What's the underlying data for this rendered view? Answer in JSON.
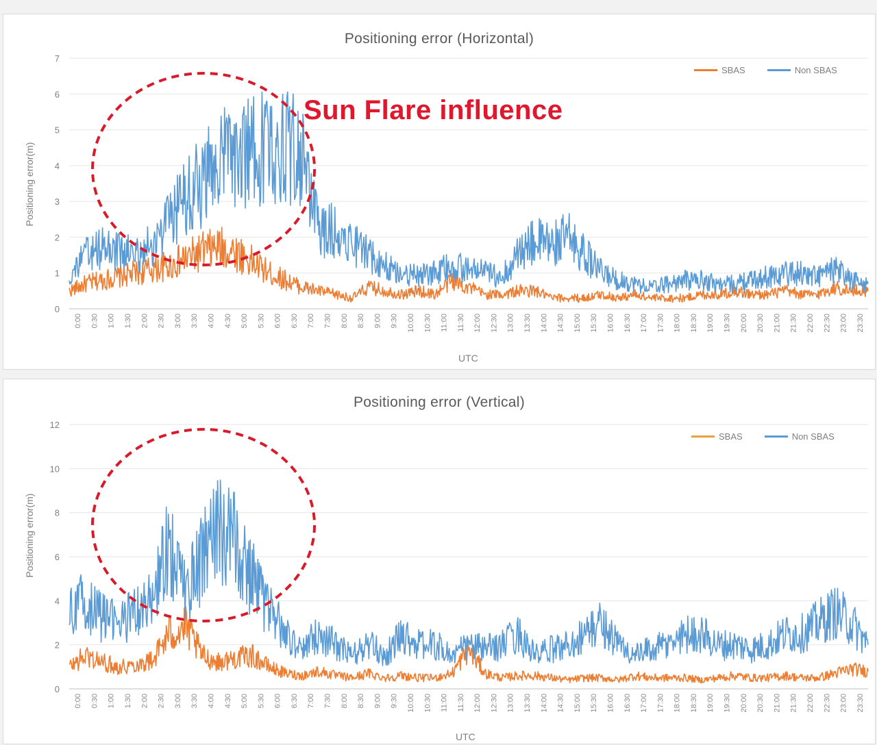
{
  "colors": {
    "sbas": "#ed7d31",
    "non_sbas": "#5b9bd5",
    "grid": "#e6e6e6",
    "highlight": "#d81b2a"
  },
  "chart_data": [
    {
      "id": "horizontal",
      "type": "line",
      "title": "Positioning error (Horizontal)",
      "xlabel": "UTC",
      "ylabel": "Positioning error(m)",
      "ylim": [
        0,
        7
      ],
      "yticks": [
        "0",
        "1",
        "2",
        "3",
        "4",
        "5",
        "6",
        "7"
      ],
      "grid": true,
      "legend_position": "top-right",
      "annotation": "Sun Flare influence",
      "x_range": [
        0,
        24
      ],
      "series": [
        {
          "name": "SBAS",
          "color_key": "sbas",
          "x": [
            0,
            0.5,
            1,
            1.5,
            2,
            2.5,
            3,
            3.5,
            4,
            4.5,
            5,
            5.5,
            6,
            6.5,
            7,
            7.5,
            8,
            8.5,
            9,
            9.5,
            10,
            10.5,
            11,
            11.5,
            12,
            12.5,
            13,
            13.5,
            14,
            14.5,
            15,
            15.5,
            16,
            16.5,
            17,
            17.5,
            18,
            18.5,
            19,
            19.5,
            20,
            20.5,
            21,
            21.5,
            22,
            22.5,
            23,
            23.5,
            24
          ],
          "values": [
            0.5,
            0.7,
            0.8,
            0.9,
            1.0,
            1.1,
            1.2,
            1.4,
            1.6,
            1.7,
            1.6,
            1.3,
            1.0,
            0.8,
            0.6,
            0.5,
            0.4,
            0.3,
            0.6,
            0.5,
            0.4,
            0.5,
            0.4,
            0.8,
            0.6,
            0.4,
            0.4,
            0.5,
            0.5,
            0.3,
            0.3,
            0.3,
            0.4,
            0.3,
            0.4,
            0.3,
            0.3,
            0.3,
            0.4,
            0.4,
            0.5,
            0.4,
            0.4,
            0.5,
            0.4,
            0.4,
            0.6,
            0.5,
            0.5
          ]
        },
        {
          "name": "Non SBAS",
          "color_key": "non_sbas",
          "x": [
            0,
            0.5,
            1,
            1.5,
            2,
            2.5,
            3,
            3.5,
            4,
            4.5,
            5,
            5.5,
            6,
            6.5,
            7,
            7.5,
            8,
            8.5,
            9,
            9.5,
            10,
            10.5,
            11,
            11.5,
            12,
            12.5,
            13,
            13.5,
            14,
            14.5,
            15,
            15.5,
            16,
            16.5,
            17,
            17.5,
            18,
            18.5,
            19,
            19.5,
            20,
            20.5,
            21,
            21.5,
            22,
            22.5,
            23,
            23.5,
            24
          ],
          "values": [
            0.9,
            1.5,
            1.7,
            1.6,
            1.5,
            1.8,
            2.4,
            3.2,
            3.5,
            4.3,
            4.2,
            4.4,
            4.5,
            4.6,
            4.2,
            2.2,
            2.2,
            1.9,
            1.5,
            1.2,
            1.0,
            0.9,
            1.0,
            1.2,
            1.1,
            1.0,
            0.9,
            1.5,
            1.9,
            1.8,
            2.0,
            1.5,
            1.0,
            0.8,
            0.7,
            0.6,
            0.7,
            0.8,
            0.8,
            0.7,
            0.7,
            0.8,
            0.9,
            1.0,
            1.0,
            0.9,
            1.1,
            0.8,
            0.7
          ]
        }
      ],
      "xtick_labels": [
        "0:00",
        "0:30",
        "1:00",
        "1:30",
        "2:00",
        "2:30",
        "3:00",
        "3:30",
        "4:00",
        "4:30",
        "5:00",
        "5:30",
        "6:00",
        "6:30",
        "7:00",
        "7:30",
        "8:00",
        "8:30",
        "9:00",
        "9:30",
        "10:00",
        "10:30",
        "11:00",
        "11:30",
        "12:00",
        "12:30",
        "13:00",
        "13:30",
        "14:00",
        "14:30",
        "15:00",
        "15:30",
        "16:00",
        "16:30",
        "17:00",
        "17:30",
        "18:00",
        "18:30",
        "19:00",
        "19:30",
        "20:00",
        "20:30",
        "21:00",
        "21:30",
        "22:00",
        "22:30",
        "23:00",
        "23:30"
      ]
    },
    {
      "id": "vertical",
      "type": "line",
      "title": "Positioning error (Vertical)",
      "xlabel": "UTC",
      "ylabel": "Positioning error(m)",
      "ylim": [
        0,
        12
      ],
      "yticks": [
        "0",
        "2",
        "4",
        "6",
        "8",
        "10",
        "12"
      ],
      "grid": true,
      "legend_position": "top-right",
      "annotation": "",
      "x_range": [
        0,
        24
      ],
      "series": [
        {
          "name": "SBAS",
          "color_key": "sbas",
          "x": [
            0,
            0.5,
            1,
            1.5,
            2,
            2.5,
            3,
            3.5,
            4,
            4.5,
            5,
            5.5,
            6,
            6.5,
            7,
            7.5,
            8,
            8.5,
            9,
            9.5,
            10,
            10.5,
            11,
            11.5,
            12,
            12.5,
            13,
            13.5,
            14,
            14.5,
            15,
            15.5,
            16,
            16.5,
            17,
            17.5,
            18,
            18.5,
            19,
            19.5,
            20,
            20.5,
            21,
            21.5,
            22,
            22.5,
            23,
            23.5,
            24
          ],
          "values": [
            1.0,
            1.5,
            1.2,
            1.0,
            1.1,
            1.3,
            2.5,
            2.8,
            1.5,
            1.2,
            1.4,
            1.5,
            1.0,
            0.7,
            0.6,
            0.8,
            0.6,
            0.5,
            0.7,
            0.5,
            0.6,
            0.5,
            0.5,
            0.7,
            1.8,
            0.7,
            0.5,
            0.6,
            0.6,
            0.5,
            0.4,
            0.5,
            0.5,
            0.4,
            0.6,
            0.5,
            0.5,
            0.5,
            0.4,
            0.5,
            0.6,
            0.5,
            0.5,
            0.6,
            0.5,
            0.5,
            0.7,
            0.9,
            0.8
          ]
        },
        {
          "name": "Non SBAS",
          "color_key": "non_sbas",
          "x": [
            0,
            0.5,
            1,
            1.5,
            2,
            2.5,
            3,
            3.5,
            4,
            4.5,
            5,
            5.5,
            6,
            6.5,
            7,
            7.5,
            8,
            8.5,
            9,
            9.5,
            10,
            10.5,
            11,
            11.5,
            12,
            12.5,
            13,
            13.5,
            14,
            14.5,
            15,
            15.5,
            16,
            16.5,
            17,
            17.5,
            18,
            18.5,
            19,
            19.5,
            20,
            20.5,
            21,
            21.5,
            22,
            22.5,
            23,
            23.5,
            24
          ],
          "values": [
            3.5,
            4.0,
            3.2,
            3.0,
            3.5,
            4.0,
            6.5,
            4.5,
            6.0,
            7.5,
            6.5,
            5.0,
            3.5,
            2.5,
            1.8,
            2.5,
            2.0,
            1.5,
            2.0,
            1.5,
            2.5,
            2.0,
            2.0,
            1.5,
            2.0,
            1.8,
            2.0,
            2.5,
            1.5,
            1.8,
            2.0,
            2.5,
            3.0,
            2.0,
            1.5,
            1.8,
            2.0,
            2.5,
            2.5,
            2.0,
            2.0,
            1.8,
            2.0,
            2.5,
            2.5,
            3.0,
            3.5,
            3.0,
            2.0
          ]
        }
      ],
      "xtick_labels": [
        "0:00",
        "0:30",
        "1:00",
        "1:30",
        "2:00",
        "2:30",
        "3:00",
        "3:30",
        "4:00",
        "4:30",
        "5:00",
        "5:30",
        "6:00",
        "6:30",
        "7:00",
        "7:30",
        "8:00",
        "8:30",
        "9:00",
        "9:30",
        "10:00",
        "10:30",
        "11:00",
        "11:30",
        "12:00",
        "12:30",
        "13:00",
        "13:30",
        "14:00",
        "14:30",
        "15:00",
        "15:30",
        "16:00",
        "16:30",
        "17:00",
        "17:30",
        "18:00",
        "18:30",
        "19:00",
        "19:30",
        "20:00",
        "20:30",
        "21:00",
        "21:30",
        "22:00",
        "22:30",
        "23:00",
        "23:30"
      ]
    }
  ]
}
